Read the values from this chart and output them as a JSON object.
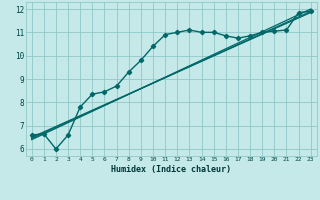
{
  "xlabel": "Humidex (Indice chaleur)",
  "bg_color": "#c5e8e8",
  "grid_color": "#90c8c8",
  "line_color": "#006868",
  "xlim": [
    -0.5,
    23.5
  ],
  "ylim": [
    5.7,
    12.3
  ],
  "xticks": [
    0,
    1,
    2,
    3,
    4,
    5,
    6,
    7,
    8,
    9,
    10,
    11,
    12,
    13,
    14,
    15,
    16,
    17,
    18,
    19,
    20,
    21,
    22,
    23
  ],
  "yticks": [
    6,
    7,
    8,
    9,
    10,
    11,
    12
  ],
  "curve_x": [
    0,
    1,
    2,
    3,
    4,
    5,
    6,
    7,
    8,
    9,
    10,
    11,
    12,
    13,
    14,
    15,
    16,
    17,
    18,
    19,
    20,
    21,
    22,
    23
  ],
  "curve_y": [
    6.6,
    6.65,
    6.0,
    6.6,
    7.8,
    8.35,
    8.45,
    8.7,
    9.3,
    9.8,
    10.4,
    10.9,
    11.0,
    11.1,
    11.0,
    11.0,
    10.85,
    10.75,
    10.85,
    11.0,
    11.05,
    11.1,
    11.85,
    11.9
  ],
  "line1_x": [
    0,
    23
  ],
  "line1_y": [
    6.5,
    11.85
  ],
  "line2_x": [
    0,
    23
  ],
  "line2_y": [
    6.45,
    11.9
  ],
  "line3_x": [
    0,
    23
  ],
  "line3_y": [
    6.4,
    12.0
  ]
}
